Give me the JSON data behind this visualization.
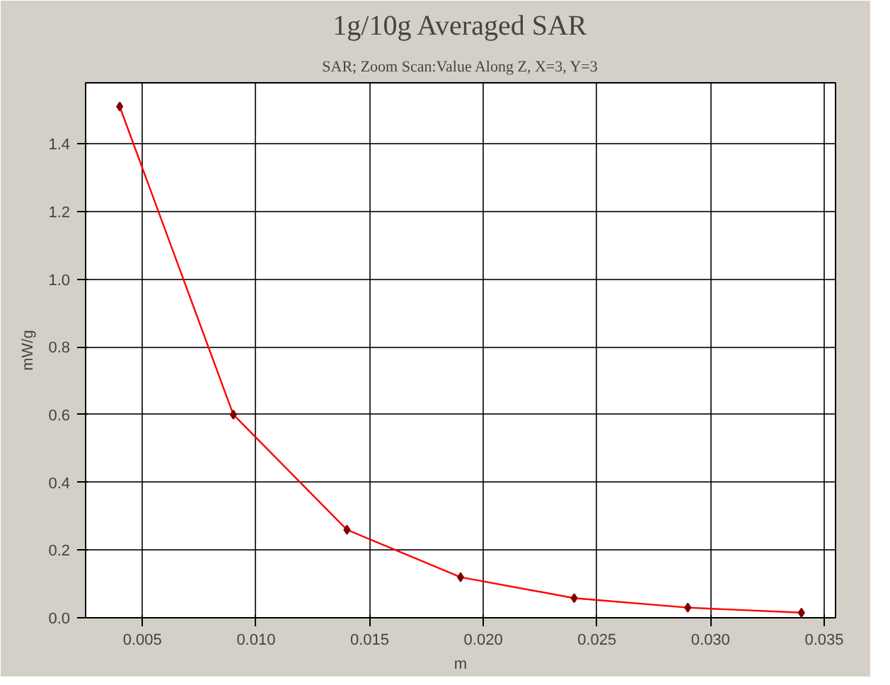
{
  "chart_data": {
    "type": "line",
    "title": "1g/10g Averaged SAR",
    "subtitle": "SAR; Zoom Scan:Value Along Z, X=3, Y=3",
    "xlabel": "m",
    "ylabel": "mW/g",
    "x": [
      0.004,
      0.009,
      0.014,
      0.019,
      0.024,
      0.029,
      0.034
    ],
    "series": [
      {
        "color": "#ff0000",
        "values": [
          1.51,
          0.6,
          0.26,
          0.12,
          0.058,
          0.03,
          0.015
        ]
      }
    ],
    "xlim": [
      0.0025,
      0.0355
    ],
    "ylim": [
      0,
      1.58
    ],
    "xticks": [
      {
        "value": 0.005,
        "label": "0.005"
      },
      {
        "value": 0.01,
        "label": "0.010"
      },
      {
        "value": 0.015,
        "label": "0.015"
      },
      {
        "value": 0.02,
        "label": "0.020"
      },
      {
        "value": 0.025,
        "label": "0.025"
      },
      {
        "value": 0.03,
        "label": "0.030"
      },
      {
        "value": 0.035,
        "label": "0.035"
      }
    ],
    "yticks": [
      {
        "value": 0,
        "label": "0.0"
      },
      {
        "value": 0.2,
        "label": "0.2"
      },
      {
        "value": 0.4,
        "label": "0.4"
      },
      {
        "value": 0.6,
        "label": "0.6"
      },
      {
        "value": 0.8,
        "label": "0.8"
      },
      {
        "value": 1.0,
        "label": "1.0"
      },
      {
        "value": 1.2,
        "label": "1.2"
      },
      {
        "value": 1.4,
        "label": "1.4"
      }
    ],
    "grid": true,
    "marker": "diamond",
    "line_style": "solid"
  }
}
